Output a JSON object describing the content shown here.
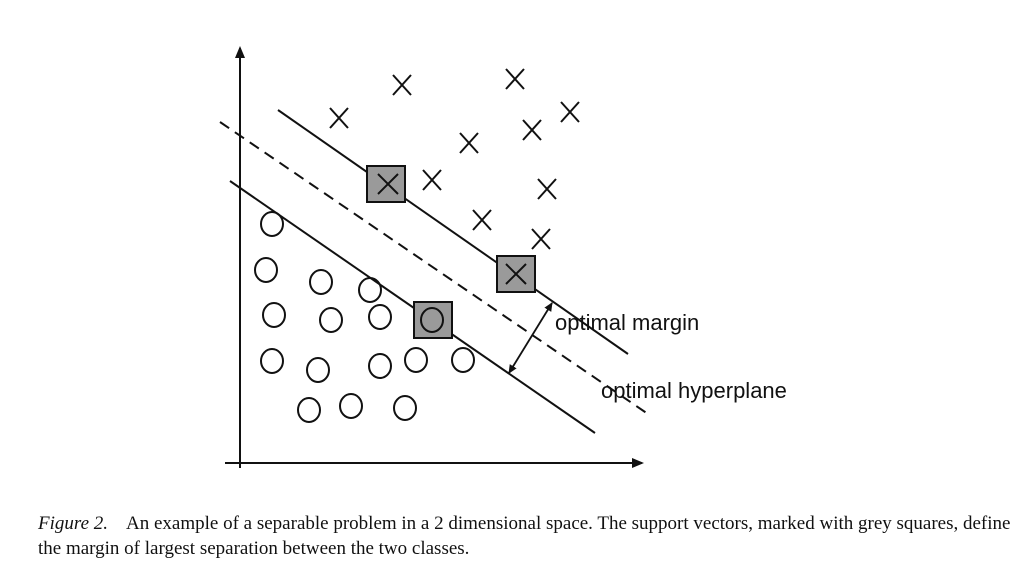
{
  "annotations": {
    "margin_label": "optimal margin",
    "hyperplane_label": "optimal hyperplane"
  },
  "caption": {
    "label": "Figure 2.",
    "text": "An example of a separable problem in a 2 dimensional space. The support vectors, marked with grey squares, define the margin of largest separation between the two classes."
  },
  "legend_meaning": {
    "support_vector_marker": "grey square"
  },
  "colors": {
    "ink": "#111111",
    "support_vector_fill": "#9a9a9a"
  }
}
